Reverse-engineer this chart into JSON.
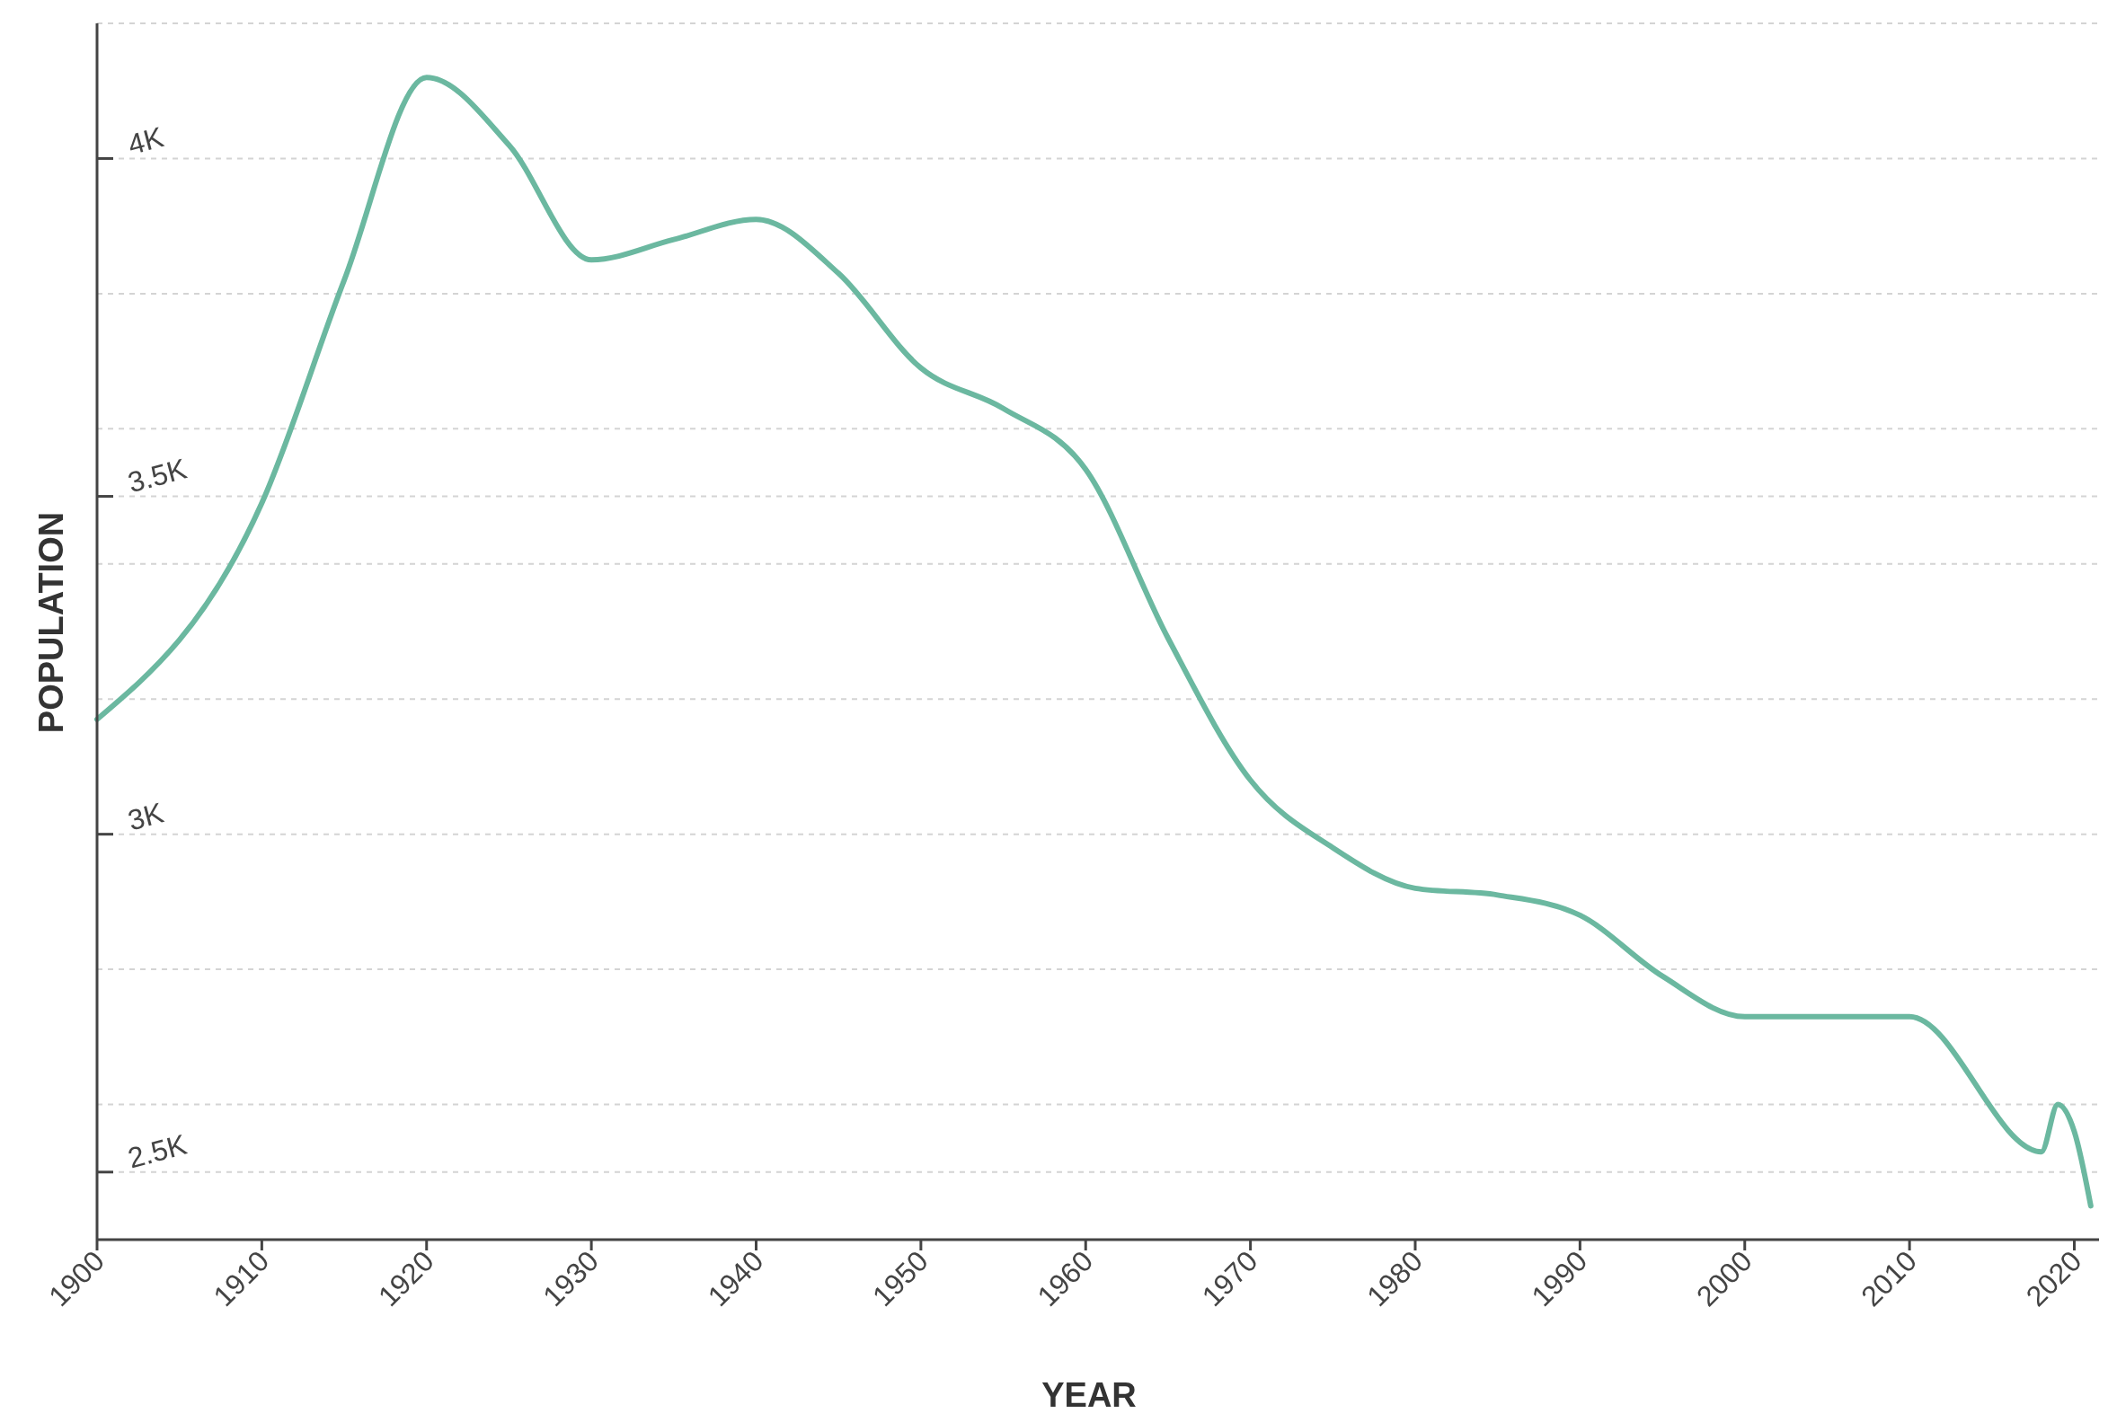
{
  "chart_data": {
    "type": "line",
    "xlabel": "YEAR",
    "ylabel": "POPULATION",
    "x": [
      1900,
      1910,
      1915,
      1920,
      1925,
      1930,
      1935,
      1940,
      1945,
      1950,
      1955,
      1960,
      1965,
      1970,
      1975,
      1980,
      1985,
      1990,
      1995,
      2000,
      2010,
      2018,
      2019,
      2020,
      2021
    ],
    "series": [
      {
        "color": "#6bb8a0",
        "values": [
          3170,
          3490,
          3820,
          4120,
          4020,
          3850,
          3880,
          3910,
          3830,
          3690,
          3630,
          3540,
          3290,
          3080,
          2980,
          2920,
          2910,
          2880,
          2790,
          2730,
          2730,
          2530,
          2600,
          2560,
          2450
        ]
      }
    ],
    "xlim": [
      1900,
      2021.5
    ],
    "xticks": [
      1900,
      1910,
      1920,
      1930,
      1940,
      1950,
      1960,
      1970,
      1980,
      1990,
      2000,
      2010,
      2020
    ],
    "ylim": [
      2400,
      4200
    ],
    "yticks": [
      {
        "value": 2500,
        "label": "2.5K"
      },
      {
        "value": 2600,
        "label": null
      },
      {
        "value": 2800,
        "label": null
      },
      {
        "value": 3000,
        "label": "3K"
      },
      {
        "value": 3200,
        "label": null
      },
      {
        "value": 3400,
        "label": null
      },
      {
        "value": 3500,
        "label": "3.5K"
      },
      {
        "value": 3600,
        "label": null
      },
      {
        "value": 3800,
        "label": null
      },
      {
        "value": 4000,
        "label": "4K"
      },
      {
        "value": 4200,
        "label": null
      }
    ],
    "grid": "y",
    "marker": "none",
    "line_style": "solid"
  }
}
